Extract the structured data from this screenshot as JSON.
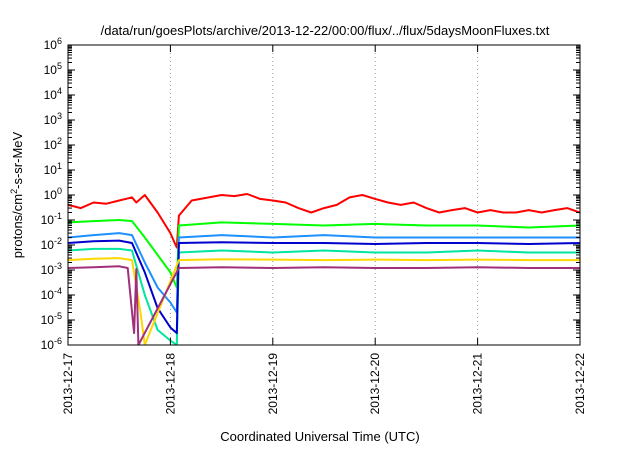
{
  "chart_data": {
    "type": "line",
    "title": "/data/run/goesPlots/archive/2013-12-22/00:00/flux/../flux/5daysMoonFluxes.txt",
    "xlabel": "Coordinated Universal Time (UTC)",
    "ylabel": {
      "base": "protons/cm",
      "sup": "2",
      "rest": "-s-sr-MeV"
    },
    "y_scale": "log",
    "ylim": [
      1e-06,
      1000000.0
    ],
    "y_ticks": [
      {
        "base": "10",
        "exp": "-6",
        "value": 1e-06
      },
      {
        "base": "10",
        "exp": "-5",
        "value": 1e-05
      },
      {
        "base": "10",
        "exp": "-4",
        "value": 0.0001
      },
      {
        "base": "10",
        "exp": "-3",
        "value": 0.001
      },
      {
        "base": "10",
        "exp": "-2",
        "value": 0.01
      },
      {
        "base": "10",
        "exp": "-1",
        "value": 0.1
      },
      {
        "base": "10",
        "exp": "0",
        "value": 1
      },
      {
        "base": "10",
        "exp": "1",
        "value": 10
      },
      {
        "base": "10",
        "exp": "2",
        "value": 100
      },
      {
        "base": "10",
        "exp": "3",
        "value": 1000
      },
      {
        "base": "10",
        "exp": "4",
        "value": 10000
      },
      {
        "base": "10",
        "exp": "5",
        "value": 100000
      },
      {
        "base": "10",
        "exp": "6",
        "value": 1000000
      }
    ],
    "xlim": [
      "2013-12-17T00:00",
      "2013-12-22T00:00"
    ],
    "x_ticks": [
      "2013-12-17",
      "2013-12-18",
      "2013-12-19",
      "2013-12-20",
      "2013-12-21",
      "2013-12-22"
    ],
    "grid": true,
    "series": [
      {
        "color": "#ff0000",
        "x": [
          "2013-12-17T00:00",
          "2013-12-17T03:00",
          "2013-12-17T06:00",
          "2013-12-17T09:00",
          "2013-12-17T12:00",
          "2013-12-17T15:00",
          "2013-12-17T16:00",
          "2013-12-17T18:00",
          "2013-12-17T21:00",
          "2013-12-18T00:00",
          "2013-12-18T01:00",
          "2013-12-18T01:30",
          "2013-12-18T02:00",
          "2013-12-18T05:00",
          "2013-12-18T09:00",
          "2013-12-18T12:00",
          "2013-12-18T15:00",
          "2013-12-18T18:00",
          "2013-12-18T21:00",
          "2013-12-19T00:00",
          "2013-12-19T03:00",
          "2013-12-19T06:00",
          "2013-12-19T09:00",
          "2013-12-19T12:00",
          "2013-12-19T15:00",
          "2013-12-19T18:00",
          "2013-12-19T21:00",
          "2013-12-20T00:00",
          "2013-12-20T03:00",
          "2013-12-20T06:00",
          "2013-12-20T09:00",
          "2013-12-20T12:00",
          "2013-12-20T15:00",
          "2013-12-20T18:00",
          "2013-12-20T21:00",
          "2013-12-21T00:00",
          "2013-12-21T03:00",
          "2013-12-21T06:00",
          "2013-12-21T09:00",
          "2013-12-21T12:00",
          "2013-12-21T15:00",
          "2013-12-21T18:00",
          "2013-12-21T21:00",
          "2013-12-22T00:00"
        ],
        "y": [
          0.4,
          0.3,
          0.5,
          0.45,
          0.6,
          0.8,
          0.5,
          1.0,
          0.2,
          0.03,
          0.012,
          0.008,
          0.15,
          0.6,
          0.8,
          1.0,
          0.9,
          1.1,
          0.7,
          0.6,
          0.5,
          0.3,
          0.2,
          0.3,
          0.4,
          0.8,
          1.0,
          0.7,
          0.5,
          0.4,
          0.5,
          0.3,
          0.2,
          0.25,
          0.3,
          0.2,
          0.25,
          0.2,
          0.2,
          0.25,
          0.2,
          0.25,
          0.3,
          0.2
        ]
      },
      {
        "color": "#00ff00",
        "x": [
          "2013-12-17T00:00",
          "2013-12-17T06:00",
          "2013-12-17T12:00",
          "2013-12-17T15:00",
          "2013-12-17T18:00",
          "2013-12-17T21:00",
          "2013-12-18T00:00",
          "2013-12-18T01:30",
          "2013-12-18T02:00",
          "2013-12-18T12:00",
          "2013-12-19T00:00",
          "2013-12-19T12:00",
          "2013-12-20T00:00",
          "2013-12-20T12:00",
          "2013-12-21T00:00",
          "2013-12-21T12:00",
          "2013-12-22T00:00"
        ],
        "y": [
          0.08,
          0.09,
          0.1,
          0.09,
          0.02,
          0.004,
          0.0008,
          0.0002,
          0.06,
          0.08,
          0.07,
          0.06,
          0.07,
          0.06,
          0.06,
          0.05,
          0.06
        ]
      },
      {
        "color": "#00e5a0",
        "x": [
          "2013-12-17T00:00",
          "2013-12-17T06:00",
          "2013-12-17T12:00",
          "2013-12-17T15:00",
          "2013-12-17T18:00",
          "2013-12-17T21:00",
          "2013-12-18T00:00",
          "2013-12-18T01:30",
          "2013-12-18T02:00",
          "2013-12-18T12:00",
          "2013-12-19T00:00",
          "2013-12-19T12:00",
          "2013-12-20T00:00",
          "2013-12-20T12:00",
          "2013-12-21T00:00",
          "2013-12-21T12:00",
          "2013-12-22T00:00"
        ],
        "y": [
          0.006,
          0.007,
          0.007,
          0.006,
          0.0001,
          4e-06,
          1.5e-06,
          1e-06,
          0.005,
          0.006,
          0.005,
          0.006,
          0.005,
          0.005,
          0.006,
          0.005,
          0.005
        ]
      },
      {
        "color": "#1e90ff",
        "x": [
          "2013-12-17T00:00",
          "2013-12-17T06:00",
          "2013-12-17T12:00",
          "2013-12-17T15:00",
          "2013-12-17T18:00",
          "2013-12-17T21:00",
          "2013-12-18T00:00",
          "2013-12-18T01:30",
          "2013-12-18T02:00",
          "2013-12-18T12:00",
          "2013-12-19T00:00",
          "2013-12-19T12:00",
          "2013-12-20T00:00",
          "2013-12-20T12:00",
          "2013-12-21T00:00",
          "2013-12-21T12:00",
          "2013-12-22T00:00"
        ],
        "y": [
          0.02,
          0.025,
          0.03,
          0.025,
          0.002,
          0.0002,
          5e-05,
          2e-05,
          0.02,
          0.025,
          0.02,
          0.025,
          0.02,
          0.02,
          0.02,
          0.02,
          0.02
        ]
      },
      {
        "color": "#0000cd",
        "x": [
          "2013-12-17T00:00",
          "2013-12-17T06:00",
          "2013-12-17T12:00",
          "2013-12-17T15:00",
          "2013-12-17T18:00",
          "2013-12-17T21:00",
          "2013-12-18T00:00",
          "2013-12-18T01:30",
          "2013-12-18T02:00",
          "2013-12-18T12:00",
          "2013-12-19T00:00",
          "2013-12-19T12:00",
          "2013-12-20T00:00",
          "2013-12-20T12:00",
          "2013-12-21T00:00",
          "2013-12-21T12:00",
          "2013-12-22T00:00"
        ],
        "y": [
          0.012,
          0.014,
          0.015,
          0.012,
          0.0008,
          3e-05,
          5e-06,
          3e-06,
          0.012,
          0.013,
          0.012,
          0.012,
          0.011,
          0.012,
          0.012,
          0.011,
          0.012
        ]
      },
      {
        "color": "#ffd700",
        "x": [
          "2013-12-17T00:00",
          "2013-12-17T06:00",
          "2013-12-17T12:00",
          "2013-12-17T15:00",
          "2013-12-17T17:00",
          "2013-12-17T18:00",
          "2013-12-18T02:00",
          "2013-12-18T12:00",
          "2013-12-19T00:00",
          "2013-12-19T12:00",
          "2013-12-20T00:00",
          "2013-12-20T12:00",
          "2013-12-21T00:00",
          "2013-12-21T12:00",
          "2013-12-22T00:00"
        ],
        "y": [
          0.0025,
          0.0028,
          0.003,
          0.0025,
          2e-05,
          1e-06,
          0.0025,
          0.0027,
          0.0026,
          0.0025,
          0.0026,
          0.0025,
          0.0026,
          0.0025,
          0.0025
        ]
      },
      {
        "color": "#a0307a",
        "x": [
          "2013-12-17T00:00",
          "2013-12-17T06:00",
          "2013-12-17T12:00",
          "2013-12-17T14:00",
          "2013-12-17T15:30",
          "2013-12-17T16:00",
          "2013-12-17T16:30",
          "2013-12-18T02:00",
          "2013-12-18T12:00",
          "2013-12-19T00:00",
          "2013-12-19T12:00",
          "2013-12-20T00:00",
          "2013-12-20T12:00",
          "2013-12-21T00:00",
          "2013-12-21T12:00",
          "2013-12-22T00:00"
        ],
        "y": [
          0.0012,
          0.0013,
          0.0014,
          0.0012,
          3e-06,
          0.0011,
          1e-06,
          0.0012,
          0.0013,
          0.0012,
          0.0013,
          0.0012,
          0.0012,
          0.0013,
          0.0012,
          0.0012
        ]
      }
    ]
  }
}
